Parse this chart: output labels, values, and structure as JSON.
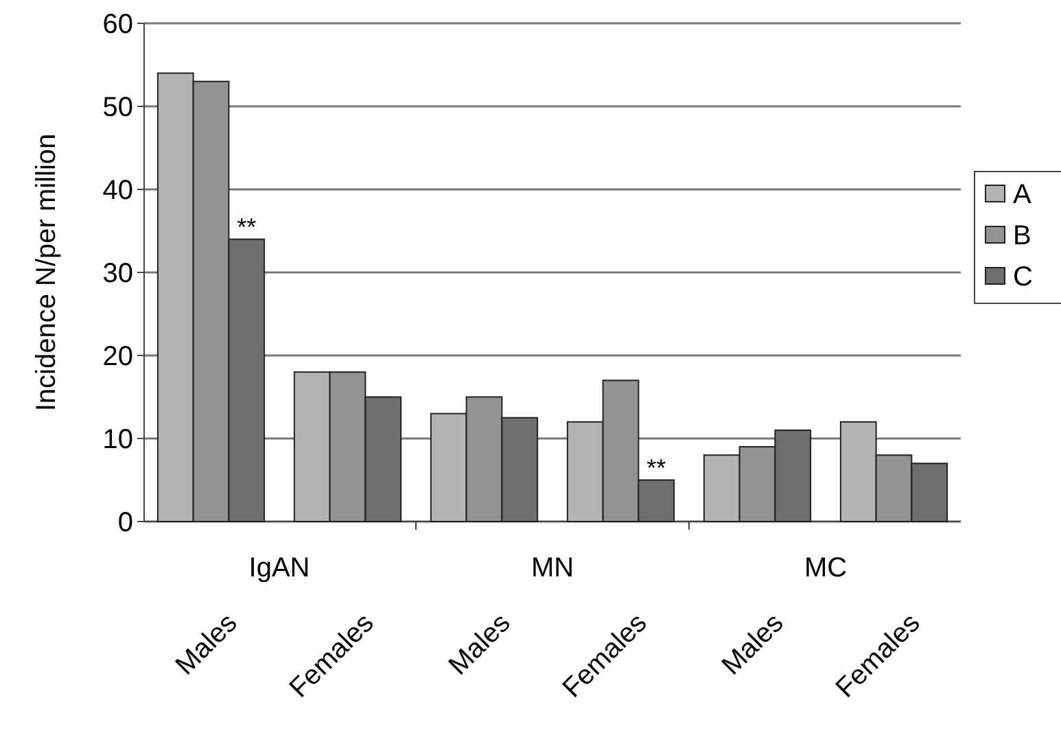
{
  "chart_data": {
    "type": "bar",
    "ylabel": "Incidence N/per million",
    "categories": [
      "Males",
      "Females",
      "Males",
      "Females",
      "Males",
      "Females"
    ],
    "series": [
      {
        "name": "A",
        "color": "#b4b4b4",
        "values": [
          54,
          18,
          13,
          12,
          8,
          12
        ]
      },
      {
        "name": "B",
        "color": "#939393",
        "values": [
          53,
          18,
          15,
          17,
          9,
          8
        ]
      },
      {
        "name": "C",
        "color": "#6e6e6e",
        "values": [
          34,
          15,
          12.5,
          5,
          11,
          7
        ]
      }
    ],
    "ylim": [
      0,
      60
    ],
    "yticks": [
      0,
      10,
      20,
      30,
      40,
      50,
      60
    ],
    "grid": "y",
    "legend": "right",
    "annotations": [
      "IgAN",
      "MN",
      "MC",
      {
        "text": "**",
        "y": 34
      },
      {
        "text": "**",
        "y": 5
      }
    ]
  }
}
